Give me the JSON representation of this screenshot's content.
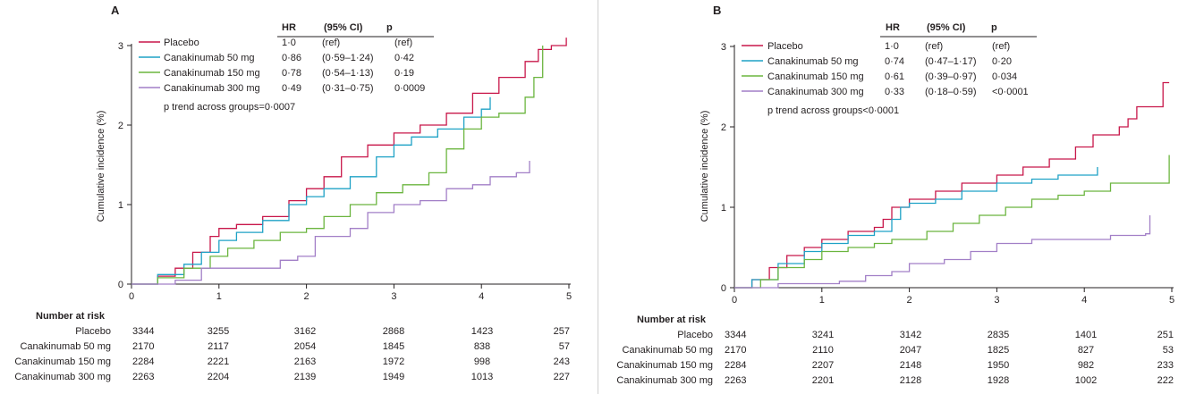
{
  "chart_data": [
    {
      "type": "line",
      "panel_label": "A",
      "xlabel": "",
      "ylabel": "Cumulative incidence (%)",
      "xlim": [
        0,
        5
      ],
      "ylim": [
        0,
        3
      ],
      "xticks": [
        "0",
        "1",
        "2",
        "3",
        "4",
        "5"
      ],
      "yticks": [
        "0",
        "1",
        "2",
        "3"
      ],
      "grid": false,
      "legend_header": {
        "hr": "HR",
        "ci": "(95% CI)",
        "p": "p"
      },
      "trend_text": "p trend across groups=0·0007",
      "series": [
        {
          "name": "Placebo",
          "color": "#c8174a",
          "hr": "1·0",
          "ci": "(ref)",
          "p": "(ref)",
          "points": [
            [
              0,
              0
            ],
            [
              0.3,
              0.1
            ],
            [
              0.5,
              0.2
            ],
            [
              0.7,
              0.4
            ],
            [
              0.9,
              0.6
            ],
            [
              1,
              0.7
            ],
            [
              1.2,
              0.75
            ],
            [
              1.5,
              0.85
            ],
            [
              1.8,
              1.05
            ],
            [
              2,
              1.2
            ],
            [
              2.2,
              1.35
            ],
            [
              2.4,
              1.6
            ],
            [
              2.7,
              1.75
            ],
            [
              3,
              1.9
            ],
            [
              3.3,
              2.0
            ],
            [
              3.6,
              2.15
            ],
            [
              3.9,
              2.4
            ],
            [
              4.2,
              2.6
            ],
            [
              4.5,
              2.8
            ],
            [
              4.65,
              2.95
            ],
            [
              4.8,
              3.0
            ],
            [
              4.97,
              3.0
            ],
            [
              4.97,
              3.1
            ]
          ]
        },
        {
          "name": "Canakinumab 50 mg",
          "color": "#1fa2c6",
          "hr": "0·86",
          "ci": "(0·59–1·24)",
          "p": "0·42",
          "points": [
            [
              0,
              0
            ],
            [
              0.3,
              0.12
            ],
            [
              0.6,
              0.25
            ],
            [
              0.8,
              0.4
            ],
            [
              1,
              0.55
            ],
            [
              1.2,
              0.65
            ],
            [
              1.5,
              0.8
            ],
            [
              1.8,
              1.0
            ],
            [
              2,
              1.1
            ],
            [
              2.2,
              1.2
            ],
            [
              2.5,
              1.35
            ],
            [
              2.8,
              1.6
            ],
            [
              3,
              1.75
            ],
            [
              3.2,
              1.85
            ],
            [
              3.5,
              1.95
            ],
            [
              3.8,
              2.1
            ],
            [
              4.0,
              2.2
            ],
            [
              4.1,
              2.35
            ]
          ]
        },
        {
          "name": "Canakinumab 150 mg",
          "color": "#6bb53f",
          "hr": "0·78",
          "ci": "(0·54–1·13)",
          "p": "0·19",
          "points": [
            [
              0,
              0
            ],
            [
              0.3,
              0.08
            ],
            [
              0.6,
              0.2
            ],
            [
              0.9,
              0.35
            ],
            [
              1.1,
              0.45
            ],
            [
              1.4,
              0.55
            ],
            [
              1.7,
              0.65
            ],
            [
              2,
              0.7
            ],
            [
              2.2,
              0.85
            ],
            [
              2.5,
              1.0
            ],
            [
              2.8,
              1.15
            ],
            [
              3.1,
              1.25
            ],
            [
              3.4,
              1.4
            ],
            [
              3.6,
              1.7
            ],
            [
              3.8,
              1.95
            ],
            [
              4.0,
              2.1
            ],
            [
              4.2,
              2.15
            ],
            [
              4.5,
              2.35
            ],
            [
              4.6,
              2.6
            ],
            [
              4.7,
              3.0
            ]
          ]
        },
        {
          "name": "Canakinumab 300 mg",
          "color": "#a27fc7",
          "hr": "0·49",
          "ci": "(0·31–0·75)",
          "p": "0·0009",
          "points": [
            [
              0,
              0
            ],
            [
              0.5,
              0.05
            ],
            [
              0.8,
              0.2
            ],
            [
              1.2,
              0.2
            ],
            [
              1.7,
              0.3
            ],
            [
              1.9,
              0.35
            ],
            [
              2.1,
              0.6
            ],
            [
              2.5,
              0.7
            ],
            [
              2.7,
              0.9
            ],
            [
              3.0,
              1.0
            ],
            [
              3.3,
              1.05
            ],
            [
              3.6,
              1.2
            ],
            [
              3.9,
              1.25
            ],
            [
              4.1,
              1.35
            ],
            [
              4.4,
              1.4
            ],
            [
              4.55,
              1.55
            ]
          ]
        }
      ],
      "risk_table": {
        "title": "Number at risk",
        "rows": [
          {
            "label": "Placebo",
            "values": [
              "3344",
              "3255",
              "3162",
              "2868",
              "1423",
              "257"
            ]
          },
          {
            "label": "Canakinumab 50 mg",
            "values": [
              "2170",
              "2117",
              "2054",
              "1845",
              "838",
              "57"
            ]
          },
          {
            "label": "Canakinumab 150 mg",
            "values": [
              "2284",
              "2221",
              "2163",
              "1972",
              "998",
              "243"
            ]
          },
          {
            "label": "Canakinumab 300 mg",
            "values": [
              "2263",
              "2204",
              "2139",
              "1949",
              "1013",
              "227"
            ]
          }
        ]
      }
    },
    {
      "type": "line",
      "panel_label": "B",
      "xlabel": "",
      "ylabel": "Cumulative incidence (%)",
      "xlim": [
        0,
        5
      ],
      "ylim": [
        0,
        3
      ],
      "xticks": [
        "0",
        "1",
        "2",
        "3",
        "4",
        "5"
      ],
      "yticks": [
        "0",
        "1",
        "2",
        "3"
      ],
      "grid": false,
      "legend_header": {
        "hr": "HR",
        "ci": "(95% CI)",
        "p": "p"
      },
      "trend_text": "p trend across groups<0·0001",
      "series": [
        {
          "name": "Placebo",
          "color": "#c8174a",
          "hr": "1·0",
          "ci": "(ref)",
          "p": "(ref)",
          "points": [
            [
              0,
              0
            ],
            [
              0.2,
              0.1
            ],
            [
              0.4,
              0.25
            ],
            [
              0.6,
              0.4
            ],
            [
              0.8,
              0.5
            ],
            [
              1,
              0.6
            ],
            [
              1.3,
              0.7
            ],
            [
              1.6,
              0.75
            ],
            [
              1.7,
              0.85
            ],
            [
              1.8,
              1.0
            ],
            [
              2,
              1.1
            ],
            [
              2.3,
              1.2
            ],
            [
              2.6,
              1.3
            ],
            [
              3,
              1.4
            ],
            [
              3.3,
              1.5
            ],
            [
              3.6,
              1.6
            ],
            [
              3.9,
              1.75
            ],
            [
              4.1,
              1.9
            ],
            [
              4.4,
              2.0
            ],
            [
              4.5,
              2.1
            ],
            [
              4.6,
              2.25
            ],
            [
              4.9,
              2.25
            ],
            [
              4.9,
              2.55
            ],
            [
              4.97,
              2.55
            ]
          ]
        },
        {
          "name": "Canakinumab 50 mg",
          "color": "#1fa2c6",
          "hr": "0·74",
          "ci": "(0·47–1·17)",
          "p": "0·20",
          "points": [
            [
              0,
              0
            ],
            [
              0.2,
              0.1
            ],
            [
              0.5,
              0.3
            ],
            [
              0.8,
              0.45
            ],
            [
              1,
              0.55
            ],
            [
              1.3,
              0.65
            ],
            [
              1.6,
              0.7
            ],
            [
              1.8,
              0.85
            ],
            [
              1.9,
              1.0
            ],
            [
              2,
              1.05
            ],
            [
              2.3,
              1.1
            ],
            [
              2.6,
              1.2
            ],
            [
              3,
              1.3
            ],
            [
              3.4,
              1.35
            ],
            [
              3.7,
              1.4
            ],
            [
              4.1,
              1.4
            ],
            [
              4.15,
              1.5
            ]
          ]
        },
        {
          "name": "Canakinumab 150 mg",
          "color": "#6bb53f",
          "hr": "0·61",
          "ci": "(0·39–0·97)",
          "p": "0·034",
          "points": [
            [
              0,
              0
            ],
            [
              0.3,
              0.1
            ],
            [
              0.5,
              0.25
            ],
            [
              0.8,
              0.35
            ],
            [
              1,
              0.45
            ],
            [
              1.3,
              0.5
            ],
            [
              1.6,
              0.55
            ],
            [
              1.8,
              0.6
            ],
            [
              2.2,
              0.7
            ],
            [
              2.5,
              0.8
            ],
            [
              2.8,
              0.9
            ],
            [
              3.1,
              1.0
            ],
            [
              3.4,
              1.1
            ],
            [
              3.7,
              1.15
            ],
            [
              4.0,
              1.2
            ],
            [
              4.3,
              1.3
            ],
            [
              4.6,
              1.3
            ],
            [
              4.97,
              1.3
            ],
            [
              4.97,
              1.65
            ]
          ]
        },
        {
          "name": "Canakinumab 300 mg",
          "color": "#a27fc7",
          "hr": "0·33",
          "ci": "(0·18–0·59)",
          "p": "<0·0001",
          "points": [
            [
              0,
              0
            ],
            [
              0.5,
              0.05
            ],
            [
              1.2,
              0.08
            ],
            [
              1.5,
              0.15
            ],
            [
              1.8,
              0.2
            ],
            [
              2.0,
              0.3
            ],
            [
              2.4,
              0.35
            ],
            [
              2.7,
              0.45
            ],
            [
              3.0,
              0.55
            ],
            [
              3.4,
              0.6
            ],
            [
              3.8,
              0.6
            ],
            [
              4.2,
              0.6
            ],
            [
              4.3,
              0.65
            ],
            [
              4.7,
              0.67
            ],
            [
              4.75,
              0.9
            ]
          ]
        }
      ],
      "risk_table": {
        "title": "Number at risk",
        "rows": [
          {
            "label": "Placebo",
            "values": [
              "3344",
              "3241",
              "3142",
              "2835",
              "1401",
              "251"
            ]
          },
          {
            "label": "Canakinumab 50 mg",
            "values": [
              "2170",
              "2110",
              "2047",
              "1825",
              "827",
              "53"
            ]
          },
          {
            "label": "Canakinumab 150 mg",
            "values": [
              "2284",
              "2207",
              "2148",
              "1950",
              "982",
              "233"
            ]
          },
          {
            "label": "Canakinumab 300 mg",
            "values": [
              "2263",
              "2201",
              "2128",
              "1928",
              "1002",
              "222"
            ]
          }
        ]
      }
    }
  ]
}
